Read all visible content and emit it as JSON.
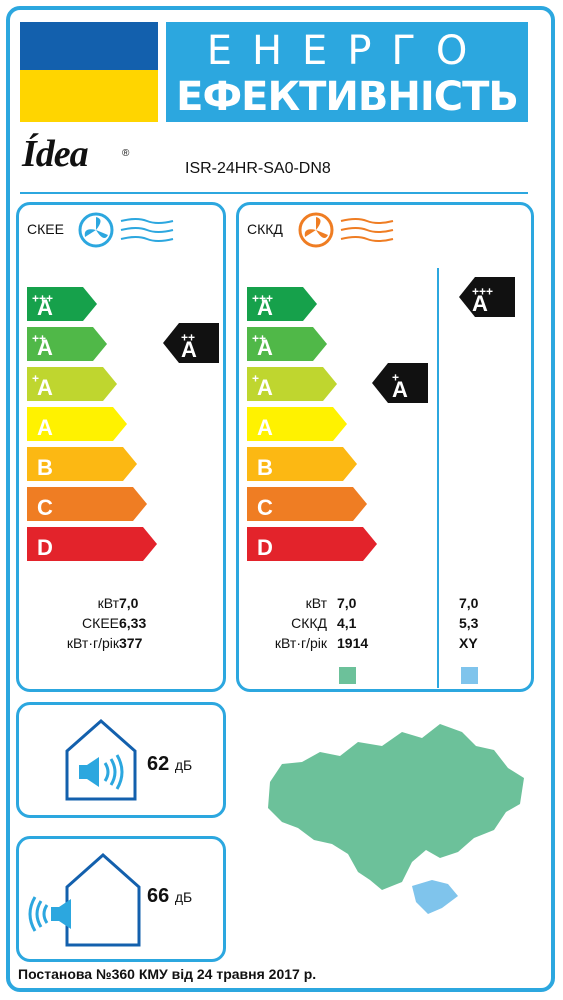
{
  "header": {
    "title_line1": "ЕНЕРГО",
    "title_line2": "ЕФЕКТИВНІСТЬ",
    "brand": "Ídea",
    "model": "ISR-24HR-SA0-DN8"
  },
  "scale": [
    {
      "label": "A",
      "sup": "+++",
      "color": "#16a14b"
    },
    {
      "label": "A",
      "sup": "++",
      "color": "#50b848"
    },
    {
      "label": "A",
      "sup": "+",
      "color": "#bfd62f"
    },
    {
      "label": "A",
      "sup": "",
      "color": "#fff200"
    },
    {
      "label": "B",
      "sup": "",
      "color": "#fcb813"
    },
    {
      "label": "C",
      "sup": "",
      "color": "#ef7d23"
    },
    {
      "label": "D",
      "sup": "",
      "color": "#e3232b"
    }
  ],
  "cooling": {
    "label": "СКЕЕ",
    "icon_color": "#2ca7df",
    "class": {
      "label": "A",
      "sup": "++"
    },
    "rows": [
      {
        "label": "кВт",
        "value": "7,0"
      },
      {
        "label": "СКЕЕ",
        "value": "6,33"
      },
      {
        "label": "кВт·г/рік",
        "value": "377"
      }
    ]
  },
  "heating": {
    "label": "СККД",
    "icon_color": "#ef7d23",
    "class_warm": {
      "label": "A",
      "sup": "+"
    },
    "class_cold": {
      "label": "A",
      "sup": "+++"
    },
    "rows": [
      {
        "label": "кВт",
        "value_warm": "7,0",
        "value_cold": "7,0"
      },
      {
        "label": "СККД",
        "value_warm": "4,1",
        "value_cold": "5,3"
      },
      {
        "label": "кВт·г/рік",
        "value_warm": "1914",
        "value_cold": "XY"
      }
    ],
    "zone_warm_color": "#6cc19a",
    "zone_cold_color": "#7fc4ec"
  },
  "sound": {
    "indoor_value": "62",
    "outdoor_value": "66",
    "unit": "дБ"
  },
  "footer": {
    "text": "Постанова №360 КМУ від 24 травня 2017 р."
  }
}
